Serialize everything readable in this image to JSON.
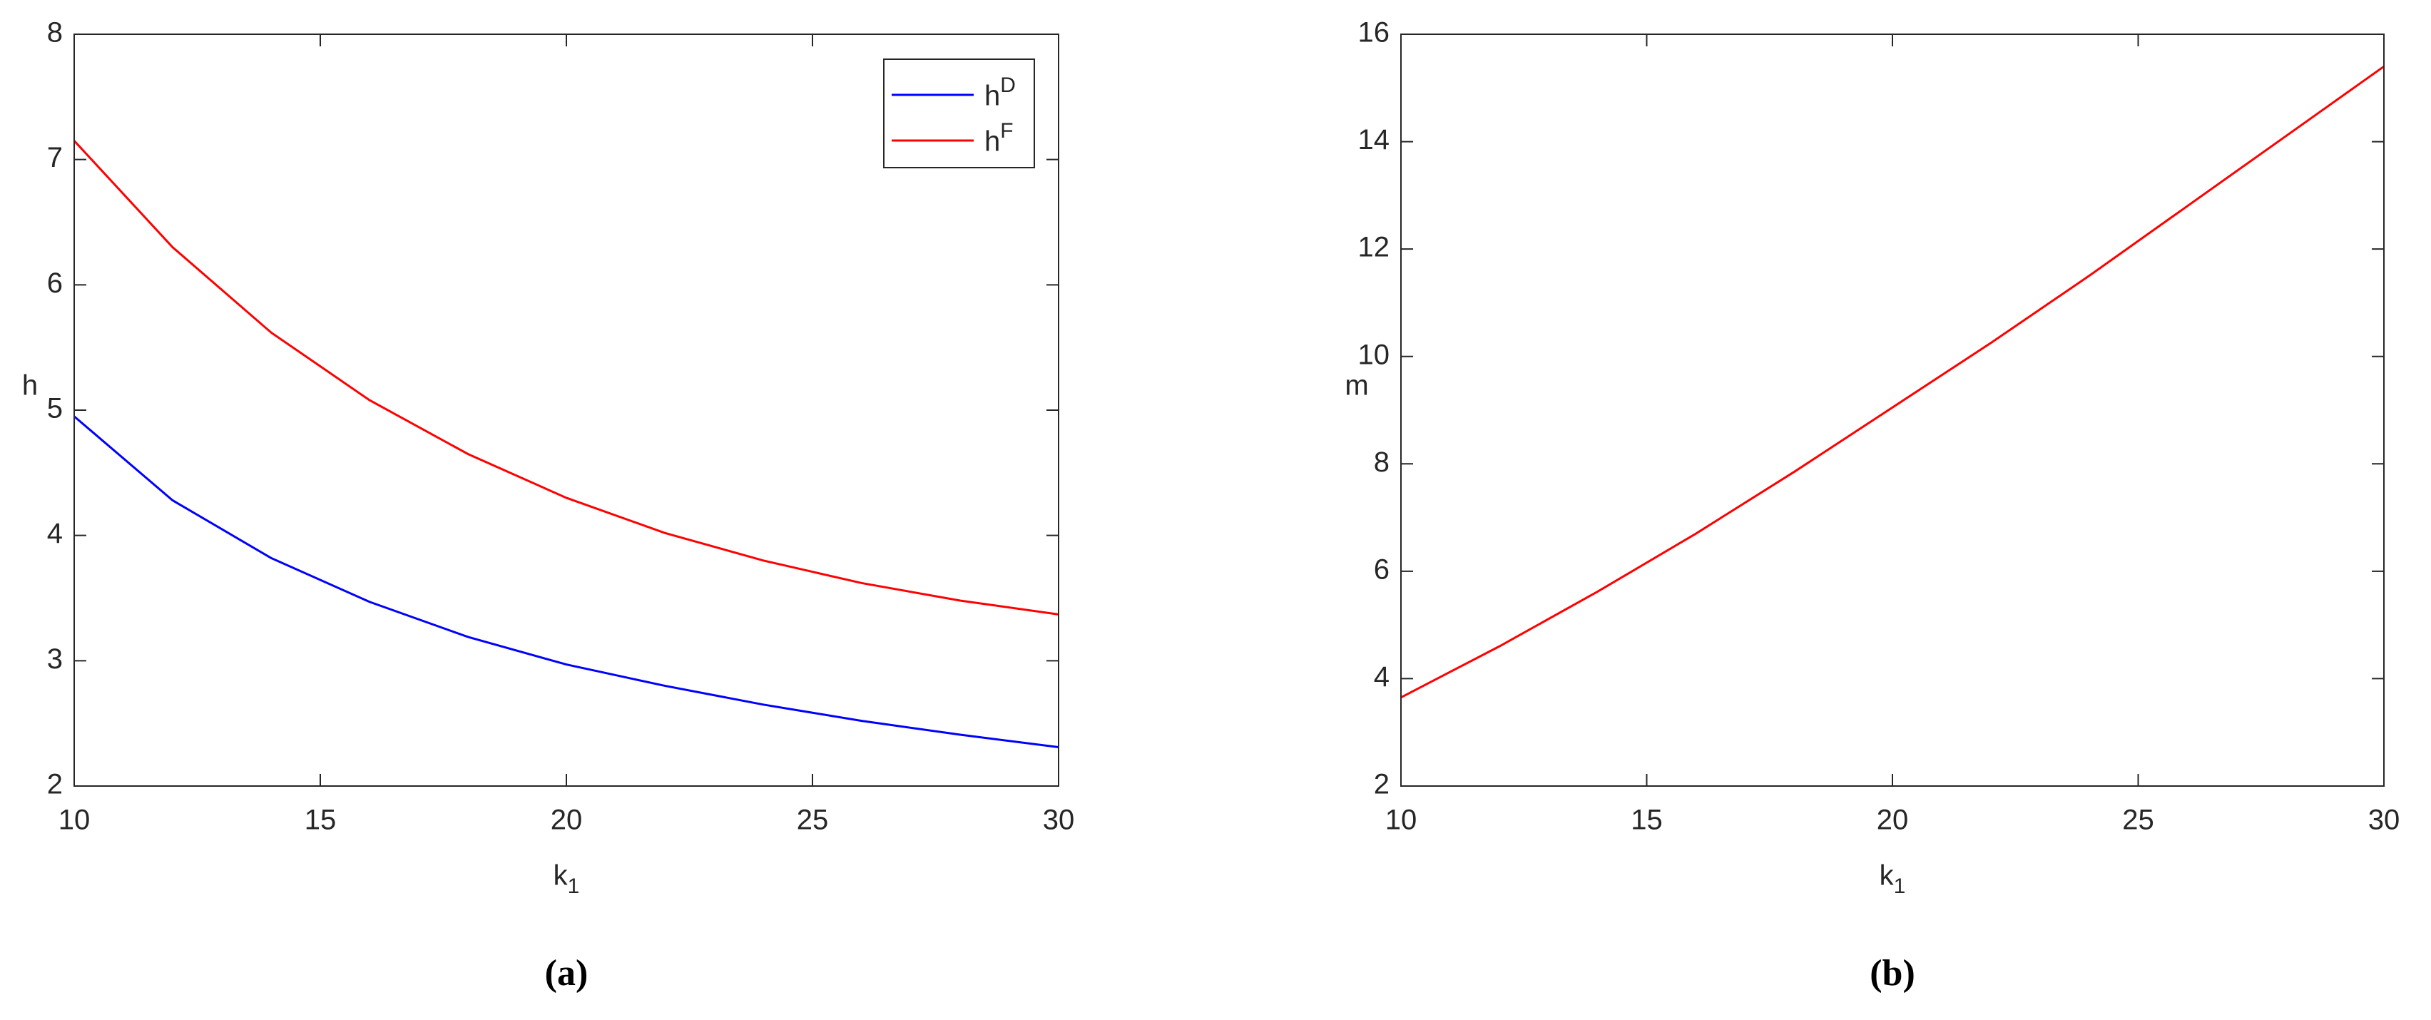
{
  "chart_data": [
    {
      "type": "line",
      "panel_label": "(a)",
      "x_label": "k_1",
      "y_label": "h",
      "x": [
        10,
        12,
        14,
        16,
        18,
        20,
        22,
        24,
        26,
        28,
        30
      ],
      "series": [
        {
          "name": "h^D",
          "color": "#0000ff",
          "values": [
            4.95,
            4.28,
            3.82,
            3.47,
            3.19,
            2.97,
            2.8,
            2.65,
            2.52,
            2.41,
            2.31
          ]
        },
        {
          "name": "h^F",
          "color": "#ff0000",
          "values": [
            7.15,
            6.3,
            5.62,
            5.08,
            4.65,
            4.3,
            4.02,
            3.8,
            3.62,
            3.48,
            3.37
          ]
        }
      ],
      "xlim": [
        10,
        30
      ],
      "xticks": [
        10,
        15,
        20,
        25,
        30
      ],
      "ylim": [
        2,
        8
      ],
      "yticks": [
        2,
        3,
        4,
        5,
        6,
        7,
        8
      ],
      "legend": "northeast"
    },
    {
      "type": "line",
      "panel_label": "(b)",
      "x_label": "k_1",
      "y_label": "m",
      "x": [
        10,
        12,
        14,
        16,
        18,
        20,
        22,
        24,
        26,
        28,
        30
      ],
      "series": [
        {
          "color": "#ff0000",
          "values": [
            3.65,
            4.6,
            5.62,
            6.7,
            7.85,
            9.05,
            10.25,
            11.5,
            12.8,
            14.1,
            15.4
          ]
        }
      ],
      "xlim": [
        10,
        30
      ],
      "xticks": [
        10,
        15,
        20,
        25,
        30
      ],
      "ylim": [
        2,
        16
      ],
      "yticks": [
        2,
        4,
        6,
        8,
        10,
        12,
        14,
        16
      ]
    }
  ]
}
